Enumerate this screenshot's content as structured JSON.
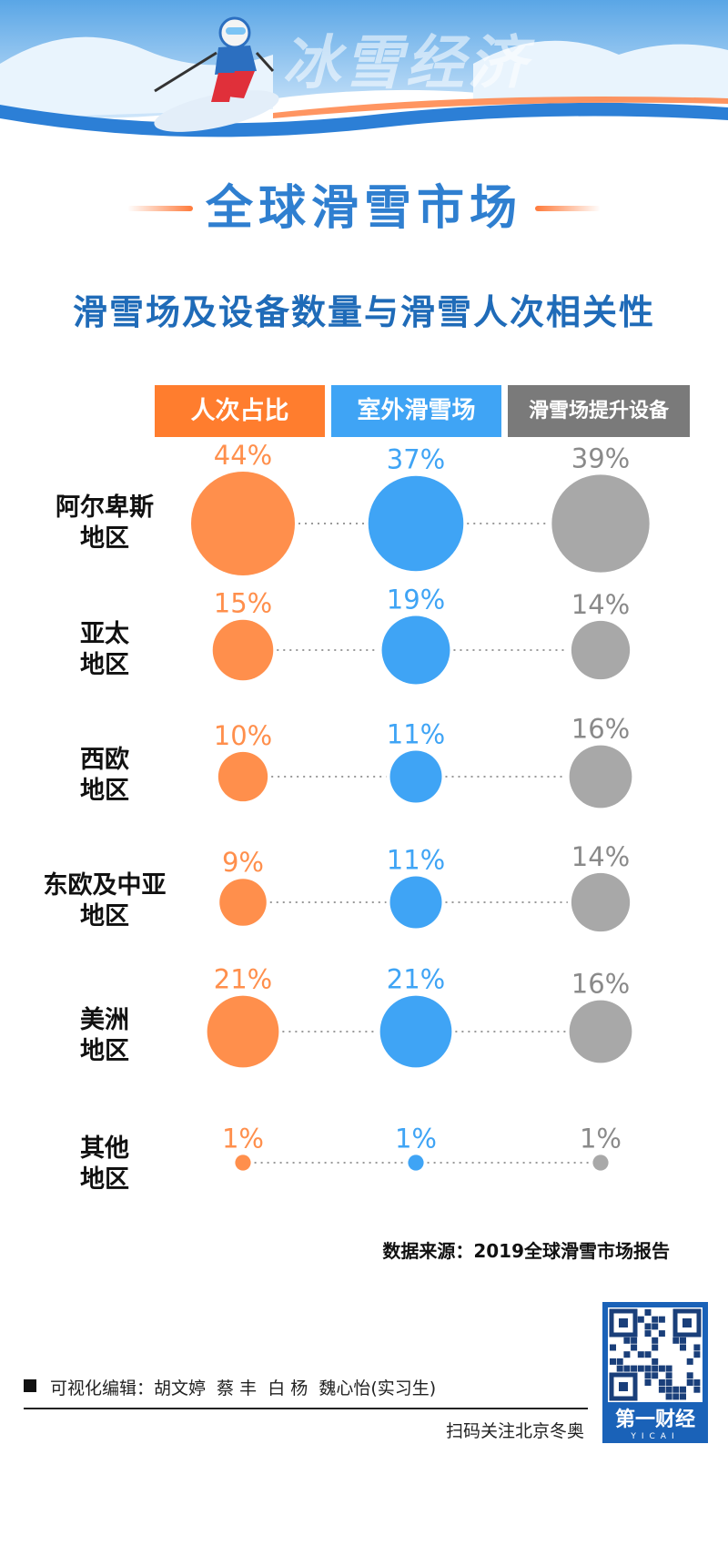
{
  "header": {
    "brand_text": "冰雪经济",
    "main_title": "全球滑雪市场",
    "subtitle": "滑雪场及设备数量与滑雪人次相关性"
  },
  "colors": {
    "orange": "#ff8f4c",
    "blue": "#3fa4f5",
    "gray": "#a8a8a8",
    "title_blue": "#2f7fd0",
    "subtitle_blue": "#1f6bb8"
  },
  "chart_data": {
    "type": "bubble",
    "unit": "%",
    "series": [
      {
        "name": "人次占比",
        "color": "#ff8f4c",
        "values": [
          44,
          15,
          10,
          9,
          21,
          1
        ]
      },
      {
        "name": "室外滑雪场",
        "color": "#3fa4f5",
        "values": [
          37,
          19,
          11,
          11,
          21,
          1
        ]
      },
      {
        "name": "滑雪场提升设备",
        "color": "#a8a8a8",
        "values": [
          39,
          14,
          16,
          14,
          16,
          1
        ]
      }
    ],
    "categories": [
      "阿尔卑斯\n地区",
      "亚太\n地区",
      "西欧\n地区",
      "东欧及中亚\n地区",
      "美洲\n地区",
      "其他\n地区"
    ]
  },
  "labels": {
    "value_labels": [
      [
        "44%",
        "37%",
        "39%"
      ],
      [
        "15%",
        "19%",
        "14%"
      ],
      [
        "10%",
        "11%",
        "16%"
      ],
      [
        "9%",
        "11%",
        "14%"
      ],
      [
        "21%",
        "21%",
        "16%"
      ],
      [
        "1%",
        "1%",
        "1%"
      ]
    ]
  },
  "footer": {
    "source": "数据来源：2019全球滑雪市场报告",
    "credit": "可视化编辑：胡文婷  蔡 丰  白 杨  魏心怡(实习生)",
    "qr_caption": "扫码关注北京冬奥",
    "logo_text": "第一财经",
    "logo_sub": "YICAI"
  }
}
